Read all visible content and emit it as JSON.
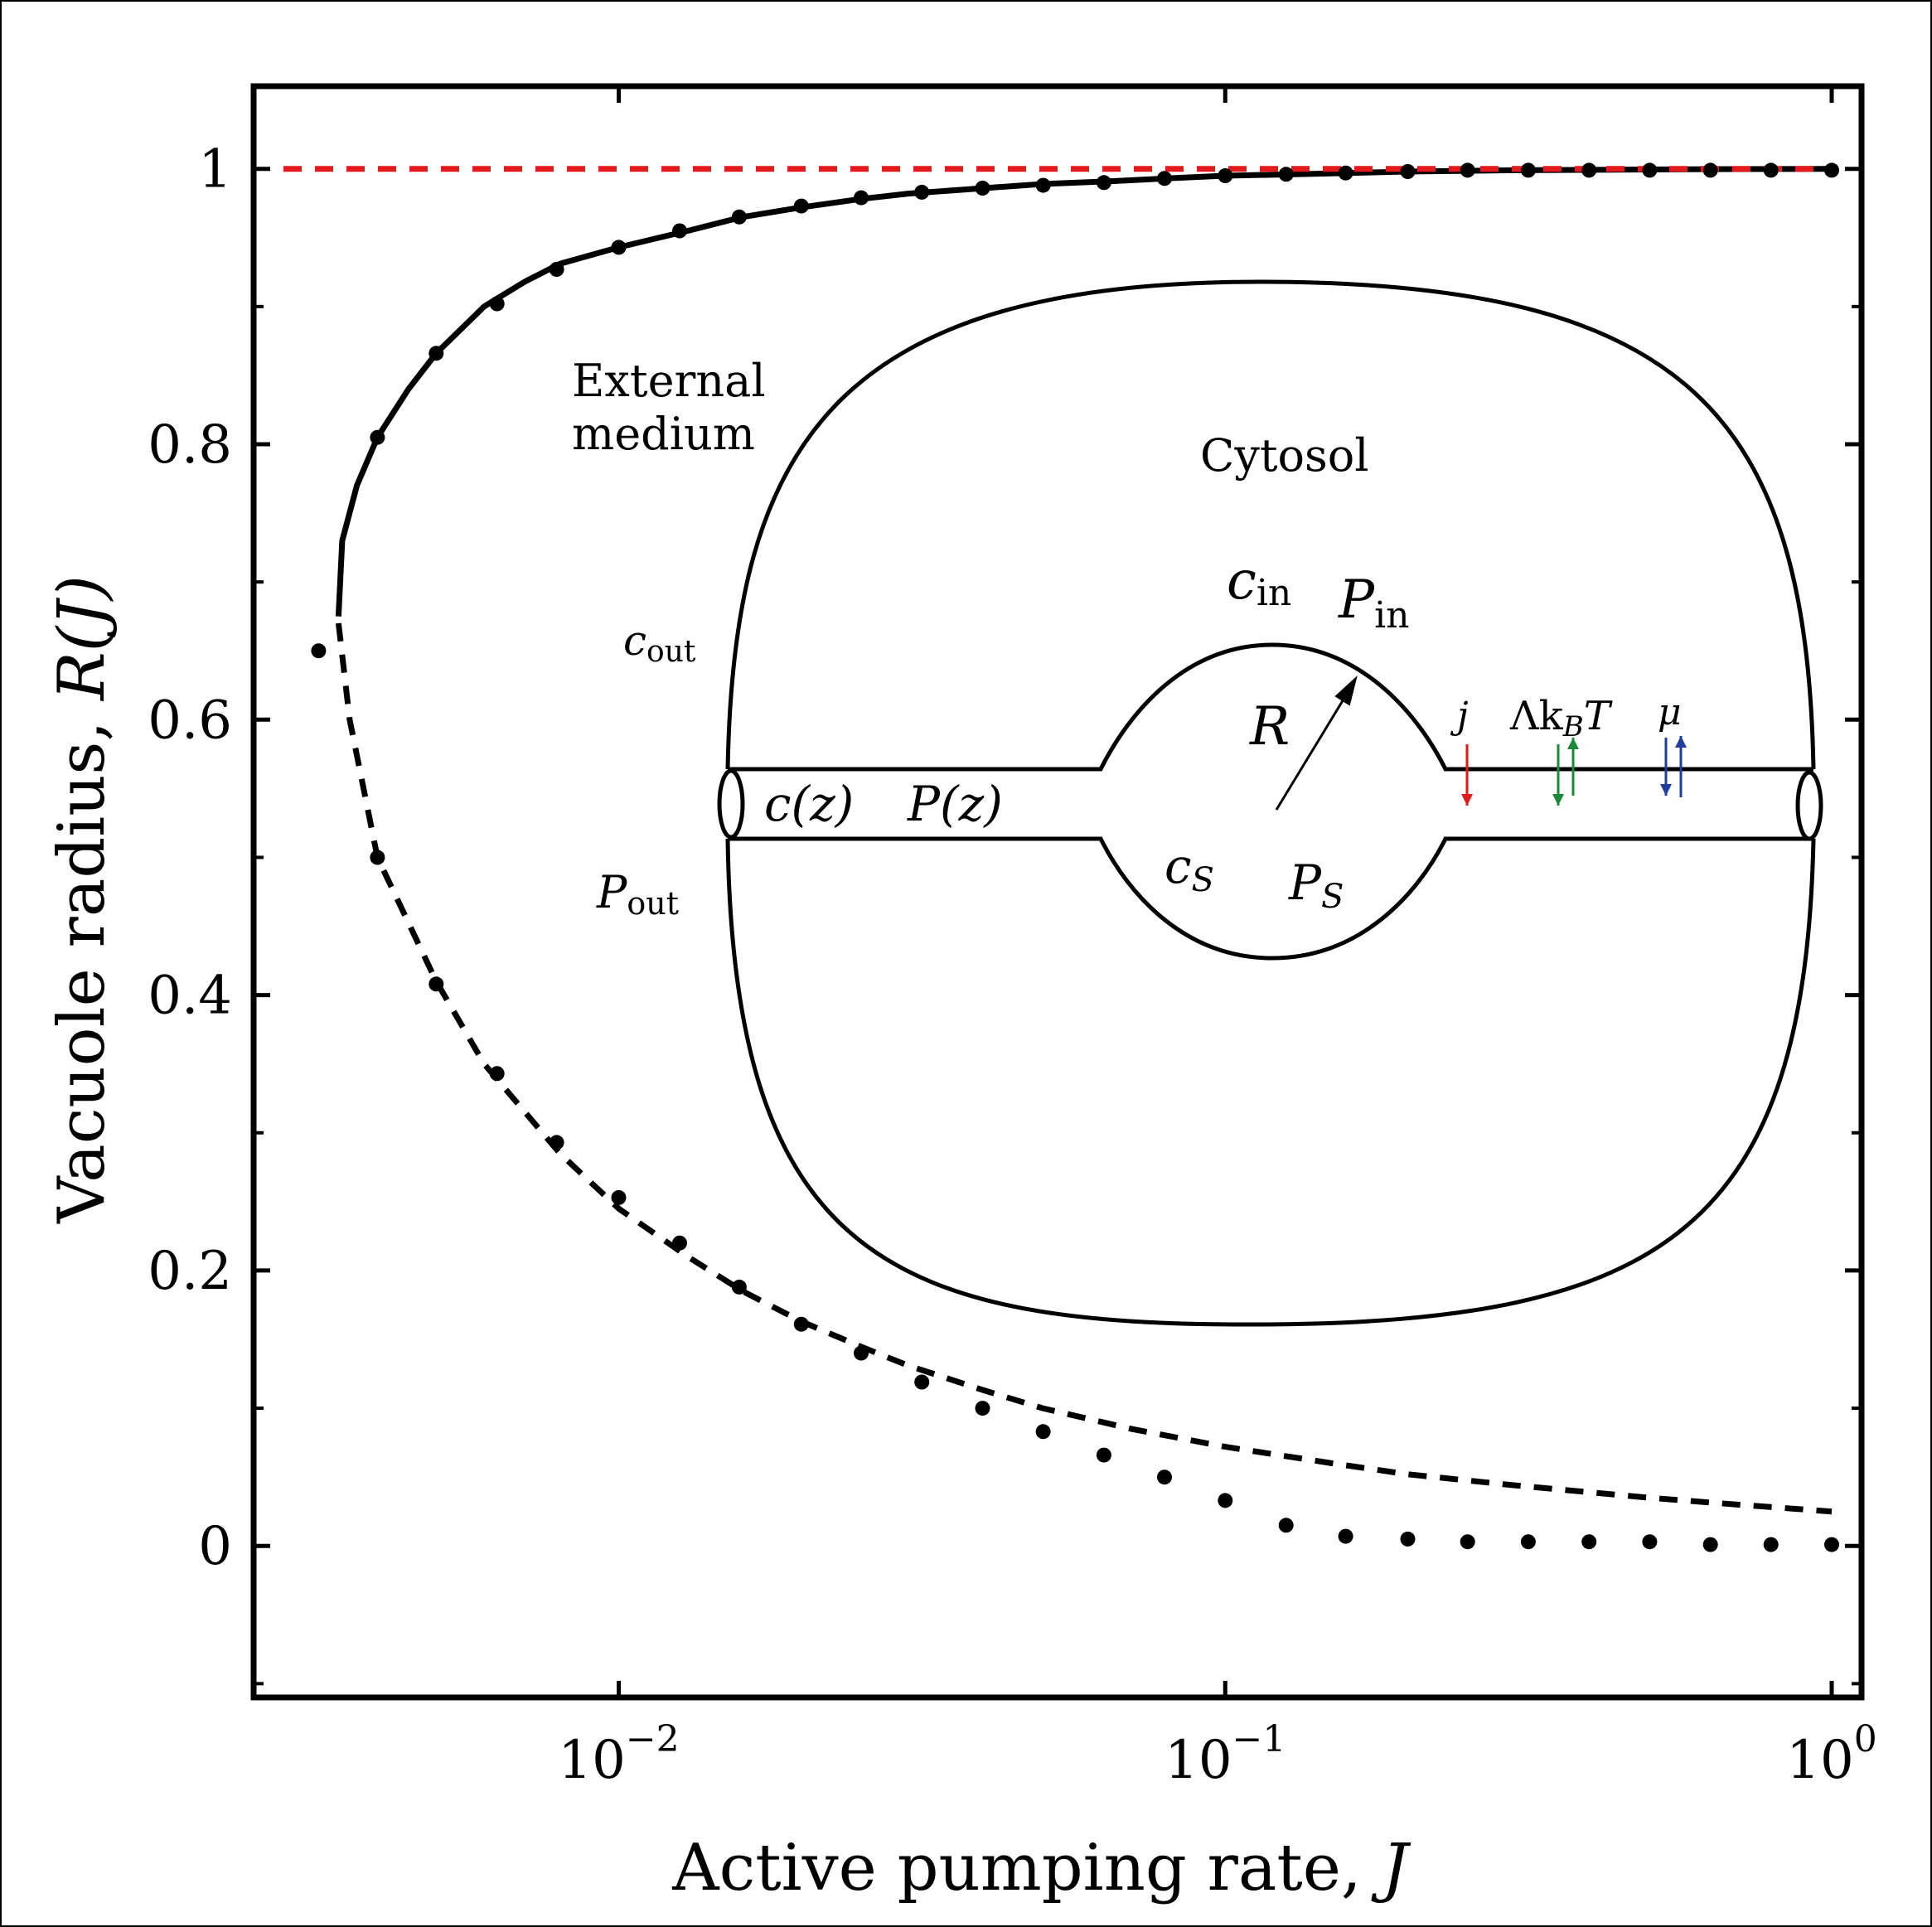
{
  "chart_data": {
    "type": "line",
    "xscale": "log",
    "xlim": [
      0.0025,
      1.12
    ],
    "ylim": [
      -0.11,
      1.06
    ],
    "xlabel": {
      "text": "Active pumping rate, ",
      "var": "J"
    },
    "ylabel": {
      "text": "Vacuole radius, ",
      "var": "R(J)"
    },
    "x_ticks": [
      {
        "value": 0.01,
        "base": "10",
        "exp": "−2"
      },
      {
        "value": 0.1,
        "base": "10",
        "exp": "−1"
      },
      {
        "value": 1,
        "base": "10",
        "exp": "0"
      }
    ],
    "y_ticks": [
      {
        "value": 0,
        "label": "0"
      },
      {
        "value": 0.2,
        "label": "0.2"
      },
      {
        "value": 0.4,
        "label": "0.4"
      },
      {
        "value": 0.6,
        "label": "0.6"
      },
      {
        "value": 0.8,
        "label": "0.8"
      },
      {
        "value": 1,
        "label": "1"
      }
    ],
    "series": [
      {
        "style": "solid",
        "color": "#000000",
        "x": [
          0.00345,
          0.0035,
          0.0037,
          0.004,
          0.0045,
          0.005,
          0.006,
          0.007,
          0.008,
          0.01,
          0.013,
          0.016,
          0.02,
          0.025,
          0.03,
          0.04,
          0.05,
          0.065,
          0.08,
          0.1,
          0.13,
          0.16,
          0.2,
          0.3,
          0.5,
          0.7,
          1.0
        ],
        "y": [
          0.675,
          0.73,
          0.77,
          0.805,
          0.84,
          0.866,
          0.9,
          0.918,
          0.931,
          0.943,
          0.955,
          0.965,
          0.972,
          0.978,
          0.982,
          0.986,
          0.989,
          0.991,
          0.993,
          0.995,
          0.996,
          0.997,
          0.998,
          0.999,
          0.9995,
          0.9998,
          1.0
        ]
      },
      {
        "style": "dashed",
        "color": "#000000",
        "x": [
          0.00345,
          0.0036,
          0.004,
          0.005,
          0.006,
          0.008,
          0.01,
          0.013,
          0.016,
          0.02,
          0.025,
          0.03,
          0.04,
          0.05,
          0.07,
          0.1,
          0.15,
          0.2,
          0.3,
          0.5,
          0.7,
          1.0
        ],
        "y": [
          0.67,
          0.6,
          0.5,
          0.41,
          0.35,
          0.285,
          0.245,
          0.21,
          0.185,
          0.163,
          0.145,
          0.131,
          0.113,
          0.1,
          0.085,
          0.072,
          0.06,
          0.052,
          0.044,
          0.035,
          0.03,
          0.025
        ]
      },
      {
        "style": "dashed",
        "color": "#e31a1c",
        "x": [
          0.0028,
          1.0
        ],
        "y": [
          1.0,
          1.0
        ]
      }
    ],
    "markers_upper": {
      "x": [
        0.004,
        0.005,
        0.0063,
        0.0079,
        0.01,
        0.0126,
        0.0158,
        0.02,
        0.0251,
        0.0316,
        0.0398,
        0.0501,
        0.0631,
        0.0794,
        0.1,
        0.126,
        0.158,
        0.2,
        0.251,
        0.316,
        0.398,
        0.501,
        0.631,
        0.794,
        1.0
      ],
      "y": [
        0.805,
        0.866,
        0.902,
        0.927,
        0.943,
        0.955,
        0.965,
        0.973,
        0.979,
        0.983,
        0.986,
        0.988,
        0.99,
        0.993,
        0.995,
        0.996,
        0.997,
        0.998,
        0.999,
        0.999,
        0.999,
        0.999,
        0.999,
        0.999,
        0.999
      ]
    },
    "markers_lower": {
      "x": [
        0.0032,
        0.004,
        0.005,
        0.0063,
        0.0079,
        0.01,
        0.0126,
        0.0158,
        0.02,
        0.0251,
        0.0316,
        0.0398,
        0.0501,
        0.0631,
        0.0794,
        0.1,
        0.126,
        0.158,
        0.2,
        0.251,
        0.316,
        0.398,
        0.501,
        0.631,
        0.794,
        1.0
      ],
      "y": [
        0.65,
        0.5,
        0.408,
        0.343,
        0.293,
        0.253,
        0.22,
        0.188,
        0.161,
        0.14,
        0.119,
        0.1,
        0.083,
        0.066,
        0.05,
        0.033,
        0.015,
        0.007,
        0.005,
        0.003,
        0.003,
        0.003,
        0.003,
        0.001,
        0.001,
        0.001
      ]
    }
  },
  "diagram": {
    "external_medium_line1": "External",
    "external_medium_line2": "medium",
    "cytosol": "Cytosol",
    "c_in": {
      "base": "c",
      "sub": "in"
    },
    "P_in": {
      "base": "P",
      "sub": "in"
    },
    "c_out": {
      "base": "c",
      "sub": "out"
    },
    "P_out": {
      "base": "P",
      "sub": "out"
    },
    "R": "R",
    "c_z": "c(z)",
    "P_z": "P(z)",
    "c_S": {
      "base": "c",
      "sub": "S"
    },
    "P_S": {
      "base": "P",
      "sub": "S"
    },
    "j": "j",
    "lambda_kbt": {
      "pre": "Λk",
      "sub": "B",
      "post": "T"
    },
    "mu": "μ",
    "arrow_colors": {
      "j": "#e31a1c",
      "lambda": "#1a8a3a",
      "mu": "#1f3d99"
    }
  }
}
